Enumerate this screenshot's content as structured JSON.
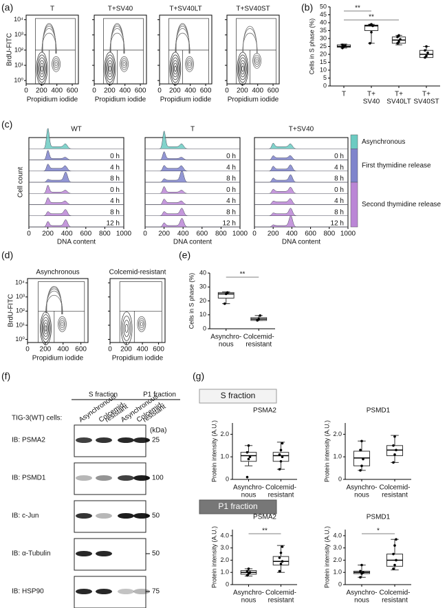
{
  "panel_labels": [
    "(a)",
    "(b)",
    "(c)",
    "(d)",
    "(e)",
    "(f)",
    "(g)"
  ],
  "a": {
    "titles": [
      "T",
      "T+SV40",
      "T+SV40LT",
      "T+SV40ST"
    ],
    "xlabel": "Propidium iodide",
    "ylabel": "BrdU-FITC",
    "xlim": [
      0,
      680
    ],
    "xticks": [
      0,
      200,
      400,
      600
    ],
    "log_y": true,
    "ylim": [
      0.6,
      20000
    ],
    "yticks": [
      {
        "value": 1,
        "label": "10⁰"
      },
      {
        "value": 10,
        "label": "10¹"
      },
      {
        "value": 100,
        "label": "10²"
      },
      {
        "value": 1000,
        "label": "10³"
      },
      {
        "value": 10000,
        "label": "10⁴"
      }
    ]
  },
  "b": {
    "type": "box",
    "ylabel": "Cells in S phase (%)",
    "ylim": [
      0,
      50
    ],
    "yticks": [
      0,
      5,
      10,
      15,
      20,
      25,
      30,
      35,
      40,
      45,
      50
    ],
    "categories": [
      [
        "T"
      ],
      [
        "T+",
        "SV40"
      ],
      [
        "T+",
        "SV40LT"
      ],
      [
        "T+",
        "SV40ST"
      ]
    ],
    "boxes": [
      {
        "whisker_low": 24,
        "q1": 24.5,
        "median": 25,
        "q3": 26,
        "whisker_high": 26.5,
        "points": [
          24,
          25,
          25.5,
          26
        ]
      },
      {
        "whisker_low": 27,
        "q1": 35,
        "median": 38,
        "q3": 38.5,
        "whisker_high": 39,
        "points": [
          27,
          34,
          38,
          38.5,
          39
        ]
      },
      {
        "whisker_low": 26,
        "q1": 27,
        "median": 29,
        "q3": 31,
        "whisker_high": 32,
        "points": [
          27,
          28,
          29.5,
          31,
          32
        ]
      },
      {
        "whisker_low": 18,
        "q1": 18,
        "median": 20,
        "q3": 22.5,
        "whisker_high": 25,
        "points": [
          18,
          19,
          21,
          22.5,
          25
        ]
      }
    ],
    "annotations": [
      "**",
      "**"
    ]
  },
  "c": {
    "titles": [
      "WT",
      "T",
      "T+SV40"
    ],
    "xlabel": "DNA content",
    "ylabel": "Cell count",
    "xlim": [
      0,
      1000
    ],
    "xticks": [
      0,
      200,
      400,
      600,
      800,
      1000
    ],
    "row_labels": [
      null,
      "0 h",
      "4 h",
      "8 h",
      "0 h",
      "4 h",
      "8 h",
      "12 h"
    ],
    "legend": [
      {
        "name": "Asynchronous",
        "color": "#6ccbc2"
      },
      {
        "name": "First thymidine release",
        "color": "#7f84cc"
      },
      {
        "name": "Second thymidine release",
        "color": "#bb86d6"
      }
    ]
  },
  "d": {
    "titles": [
      "Asynchronous",
      "Colcemid-resistant"
    ],
    "xlabel": "Propidium iodide",
    "ylabel": "BrdU-FITC",
    "xlim": [
      0,
      680
    ],
    "xticks": [
      0,
      200,
      400,
      600
    ],
    "log_y": true,
    "ylim": [
      0.6,
      20000
    ],
    "yticks": [
      {
        "value": 1,
        "label": "10⁰"
      },
      {
        "value": 10,
        "label": "10¹"
      },
      {
        "value": 100,
        "label": "10²"
      },
      {
        "value": 1000,
        "label": "10³"
      },
      {
        "value": 10000,
        "label": "10⁴"
      }
    ]
  },
  "e": {
    "type": "box",
    "ylabel": "Cells in S phase (%)",
    "ylim": [
      0,
      40
    ],
    "yticks": [
      0,
      10,
      20,
      30,
      40
    ],
    "categories": [
      [
        "Asynchro-",
        "nous"
      ],
      [
        "Colcemid-",
        "resistant"
      ]
    ],
    "boxes": [
      {
        "whisker_low": 18,
        "q1": 22,
        "median": 25,
        "q3": 26,
        "whisker_high": 26.5,
        "points": [
          18,
          25,
          26
        ]
      },
      {
        "whisker_low": 6,
        "q1": 6,
        "median": 7,
        "q3": 8,
        "whisker_high": 9.5,
        "points": [
          6,
          7,
          9.5
        ]
      }
    ],
    "annotations": [
      "**"
    ]
  },
  "f": {
    "header": "TIG-3(WT) cells:",
    "fractions": [
      "S fraction",
      "P1 fraction"
    ],
    "lanes": [
      [
        "Asynchronous"
      ],
      [
        "Colcemid-",
        "resistant"
      ],
      [
        "Asynchronous"
      ],
      [
        "Colcemid-",
        "resistant"
      ]
    ],
    "unit": "(kDa)",
    "rows": [
      {
        "label": "IB: PSMA2",
        "marker": 25
      },
      {
        "label": "IB: PSMD1",
        "marker": 100
      },
      {
        "label": "IB: c-Jun",
        "marker": 50
      },
      {
        "label": "IB: α-Tubulin",
        "marker": 50
      },
      {
        "label": "IB: HSP90",
        "marker": 75
      }
    ]
  },
  "g": {
    "sections": [
      "S fraction",
      "P1 fraction"
    ],
    "ylabel": "Protein intensity (A.U.)",
    "categories": [
      [
        "Asynchro-",
        "nous"
      ],
      [
        "Colcemid-",
        "resistant"
      ]
    ],
    "charts": [
      {
        "type": "box",
        "title": "PSMA2",
        "ylim": [
          0,
          2.5
        ],
        "yticks": [
          0,
          {
            "value": 1,
            "label": "1.0"
          },
          {
            "value": 2,
            "label": "2.0"
          }
        ],
        "boxes": [
          {
            "whisker_low": 0.6,
            "q1": 0.8,
            "median": 1.05,
            "q3": 1.2,
            "whisker_high": 1.5,
            "points": [
              0.1,
              0.9,
              1.0,
              1.2,
              1.5
            ]
          },
          {
            "whisker_low": 0.45,
            "q1": 0.8,
            "median": 1.05,
            "q3": 1.2,
            "whisker_high": 1.65,
            "points": [
              0.45,
              0.8,
              1.0,
              1.1,
              1.3,
              1.6
            ]
          }
        ]
      },
      {
        "type": "box",
        "title": "PSMD1",
        "ylim": [
          0,
          2.5
        ],
        "yticks": [
          0,
          {
            "value": 1,
            "label": "1.0"
          },
          {
            "value": 2,
            "label": "2.0"
          }
        ],
        "boxes": [
          {
            "whisker_low": 0.4,
            "q1": 0.6,
            "median": 0.95,
            "q3": 1.25,
            "whisker_high": 1.7,
            "points": [
              0.4,
              0.6,
              0.9,
              1.3,
              1.7
            ]
          },
          {
            "whisker_low": 0.75,
            "q1": 1.05,
            "median": 1.3,
            "q3": 1.5,
            "whisker_high": 1.95,
            "points": [
              0.75,
              1.1,
              1.3,
              1.5,
              1.9
            ]
          }
        ]
      },
      {
        "type": "box",
        "title": "PSMA2",
        "ylim": [
          0,
          4.5
        ],
        "yticks": [
          0,
          {
            "value": 1,
            "label": "1.0"
          },
          {
            "value": 2,
            "label": "2.0"
          },
          {
            "value": 3,
            "label": "3.0"
          },
          {
            "value": 4,
            "label": "4.0"
          }
        ],
        "boxes": [
          {
            "whisker_low": 0.7,
            "q1": 0.85,
            "median": 1.0,
            "q3": 1.15,
            "whisker_high": 1.3,
            "points": [
              0.75,
              0.9,
              1.0,
              1.1,
              1.3
            ]
          },
          {
            "whisker_low": 1.0,
            "q1": 1.6,
            "median": 1.9,
            "q3": 2.3,
            "whisker_high": 3.2,
            "points": [
              1.1,
              1.7,
              1.9,
              2.2,
              2.6,
              3.1
            ]
          }
        ],
        "annotations": [
          "**"
        ]
      },
      {
        "type": "box",
        "title": "PSMD1",
        "ylim": [
          0,
          4.5
        ],
        "yticks": [
          0,
          {
            "value": 1,
            "label": "1.0"
          },
          {
            "value": 2,
            "label": "2.0"
          },
          {
            "value": 3,
            "label": "3.0"
          },
          {
            "value": 4,
            "label": "4.0"
          }
        ],
        "boxes": [
          {
            "whisker_low": 0.6,
            "q1": 0.9,
            "median": 1.0,
            "q3": 1.1,
            "whisker_high": 1.6,
            "points": [
              0.6,
              0.9,
              1.0,
              1.1,
              1.6
            ]
          },
          {
            "whisker_low": 1.2,
            "q1": 1.5,
            "median": 2.0,
            "q3": 2.5,
            "whisker_high": 3.7,
            "points": [
              1.3,
              1.6,
              2.0,
              2.5,
              3.2,
              3.7
            ]
          }
        ],
        "annotations": [
          "*"
        ]
      }
    ]
  }
}
